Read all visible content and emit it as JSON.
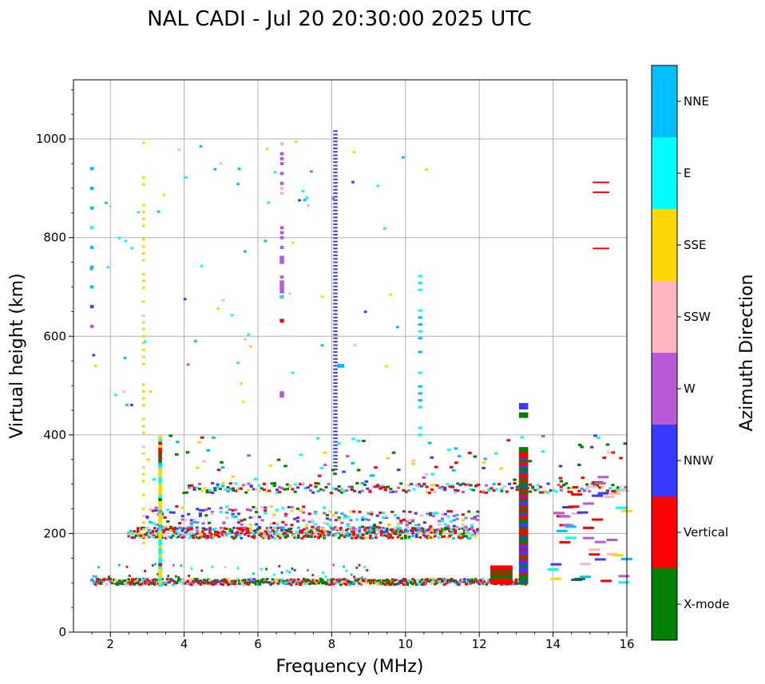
{
  "chart_data": {
    "type": "scatter",
    "title": "NAL CADI - Jul 20 20:30:00 2025 UTC",
    "xlabel": "Frequency (MHz)",
    "ylabel": "Virtual height (km)",
    "xlim": [
      1,
      16
    ],
    "ylim": [
      0,
      1120
    ],
    "xticks": [
      2,
      4,
      6,
      8,
      10,
      12,
      14,
      16
    ],
    "yticks": [
      0,
      200,
      400,
      600,
      800,
      1000
    ],
    "grid": true,
    "colorbar": {
      "label": "Azimuth Direction",
      "categories": [
        {
          "name": "X-mode",
          "color": "#008000"
        },
        {
          "name": "Vertical",
          "color": "#ff0000"
        },
        {
          "name": "NNW",
          "color": "#3a3aff"
        },
        {
          "name": "W",
          "color": "#b75ad6"
        },
        {
          "name": "SSW",
          "color": "#ffb6c1"
        },
        {
          "name": "SSE",
          "color": "#ffd700"
        },
        {
          "name": "E",
          "color": "#00ffff"
        },
        {
          "name": "NNE",
          "color": "#00bfff"
        }
      ]
    },
    "series": [
      {
        "name": "E-layer trace",
        "x_range": [
          1.5,
          13.3
        ],
        "height_km": 100
      },
      {
        "name": "F-layer trace",
        "x_range": [
          2.5,
          12.0
        ],
        "height_km": 200
      },
      {
        "name": "F2 trace",
        "x_range": [
          4.0,
          16.0
        ],
        "height_km": 290
      },
      {
        "name": "Vertical spread at 13.2 MHz",
        "x": 13.2,
        "height_range": [
          100,
          470
        ]
      },
      {
        "name": "NNW column at 8.1 MHz",
        "x": 8.1,
        "height_range": [
          330,
          1020
        ]
      },
      {
        "name": "Vertical echoes near 15.3 MHz",
        "x": 15.3,
        "heights_km": [
          778,
          892,
          912
        ]
      }
    ]
  }
}
